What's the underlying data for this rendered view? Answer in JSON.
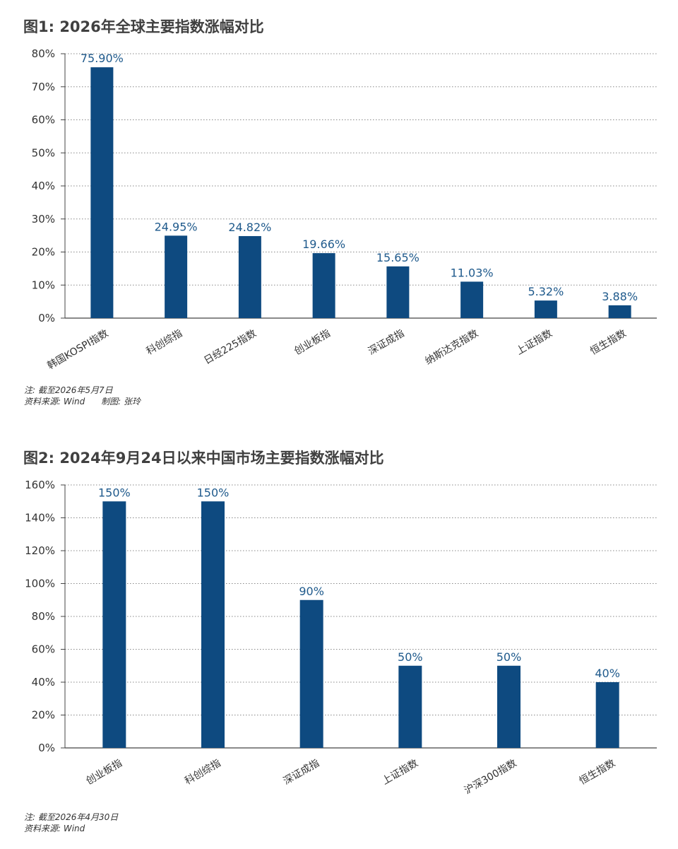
{
  "figures": [
    {
      "title": "图1: 2026年全球主要指数涨幅对比",
      "notes": [
        "注: 截至2026年5月7日",
        "资料来源: Wind      制图: 张玲"
      ]
    },
    {
      "title": "图2: 2024年9月24日以来中国市场主要指数涨幅对比",
      "notes": [
        "注: 截至2026年4月30日",
        "资料来源: Wind"
      ]
    }
  ],
  "colors": {
    "bar": "#0e4a80",
    "label": "#1f5a8c",
    "axis": "#444444",
    "grid": "#888888"
  },
  "chart_data": [
    {
      "type": "bar",
      "title": "图1: 2026年全球主要指数涨幅对比",
      "xlabel": "",
      "ylabel": "",
      "categories": [
        "韩国KOSPI指数",
        "科创综指",
        "日经225指数",
        "创业板指",
        "深证成指",
        "纳斯达克指数",
        "上证指数",
        "恒生指数"
      ],
      "values": [
        75.9,
        24.95,
        24.82,
        19.66,
        15.65,
        11.03,
        5.32,
        3.88
      ],
      "value_labels": [
        "75.90%",
        "24.95%",
        "24.82%",
        "19.66%",
        "15.65%",
        "11.03%",
        "5.32%",
        "3.88%"
      ],
      "ylim": [
        0,
        80
      ],
      "yticks": [
        0,
        10,
        20,
        30,
        40,
        50,
        60,
        70,
        80
      ],
      "ytick_labels": [
        "0%",
        "10%",
        "20%",
        "30%",
        "40%",
        "50%",
        "60%",
        "70%",
        "80%"
      ],
      "grid": true,
      "legend": "none"
    },
    {
      "type": "bar",
      "title": "图2: 2024年9月24日以来中国市场主要指数涨幅对比",
      "xlabel": "",
      "ylabel": "",
      "categories": [
        "创业板指",
        "科创综指",
        "深证成指",
        "上证指数",
        "沪深300指数",
        "恒生指数"
      ],
      "values": [
        150,
        150,
        90,
        50,
        50,
        40
      ],
      "value_labels": [
        "150%",
        "150%",
        "90%",
        "50%",
        "50%",
        "40%"
      ],
      "ylim": [
        0,
        160
      ],
      "yticks": [
        0,
        20,
        40,
        60,
        80,
        100,
        120,
        140,
        160
      ],
      "ytick_labels": [
        "0%",
        "20%",
        "40%",
        "60%",
        "80%",
        "100%",
        "120%",
        "140%",
        "160%"
      ],
      "grid": true,
      "legend": "none"
    }
  ]
}
